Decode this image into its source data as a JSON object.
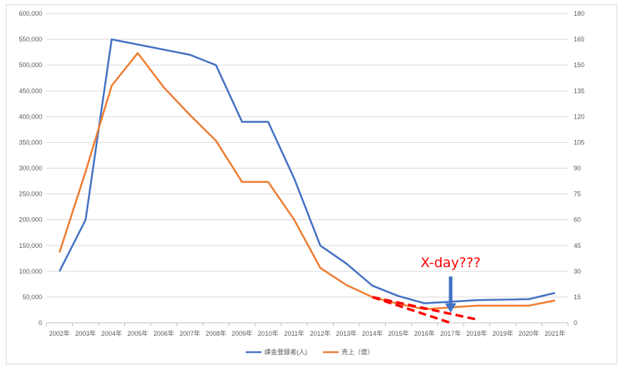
{
  "chart_data": {
    "type": "line",
    "categories": [
      "2002年",
      "2003年",
      "2004年",
      "2005年",
      "2006年",
      "2007年",
      "2008年",
      "2009年",
      "2010年",
      "2011年",
      "2012年",
      "2013年",
      "2014年",
      "2015年",
      "2016年",
      "2017年",
      "2018年",
      "2019年",
      "2020年",
      "2021年"
    ],
    "y_left": {
      "min": 0,
      "max": 600000,
      "step": 50000,
      "labels": [
        "0",
        "50,000",
        "100,000",
        "150,000",
        "200,000",
        "250,000",
        "300,000",
        "350,000",
        "400,000",
        "450,000",
        "500,000",
        "550,000",
        "600,000"
      ]
    },
    "y_right": {
      "min": 0,
      "max": 180,
      "step": 15,
      "labels": [
        "0",
        "15",
        "30",
        "45",
        "60",
        "75",
        "90",
        "105",
        "120",
        "135",
        "150",
        "165",
        "180"
      ]
    },
    "grid": true,
    "legend_position": "bottom",
    "series": [
      {
        "name": "課金登録者(人)",
        "axis": "left",
        "color": "#4472c4",
        "values": [
          100000,
          200000,
          550000,
          540000,
          530000,
          520000,
          500000,
          390000,
          390000,
          280000,
          150000,
          115000,
          72000,
          52000,
          38000,
          41000,
          44000,
          45000,
          46000,
          58000
        ]
      },
      {
        "name": "売上（億）",
        "axis": "right",
        "color": "#ed7d31",
        "values": [
          41,
          88,
          138,
          157,
          137,
          121,
          106,
          82,
          82,
          60,
          32,
          22,
          15,
          11,
          8,
          9,
          10,
          10,
          10,
          13
        ]
      }
    ],
    "trend_lines": [
      {
        "color": "#ff0000",
        "axis": "right",
        "points": [
          [
            "2014年",
            15
          ],
          [
            "2017年",
            0
          ]
        ]
      },
      {
        "color": "#ff0000",
        "axis": "right",
        "points": [
          [
            "2014年",
            15
          ],
          [
            "2018年",
            2
          ]
        ]
      }
    ],
    "annotations": [
      {
        "text": "X-day???",
        "color": "#ff0000",
        "category": "2017年",
        "arrow_color": "#4472c4",
        "arrow_from_right_value": 27,
        "arrow_to_right_value": 6
      }
    ]
  }
}
